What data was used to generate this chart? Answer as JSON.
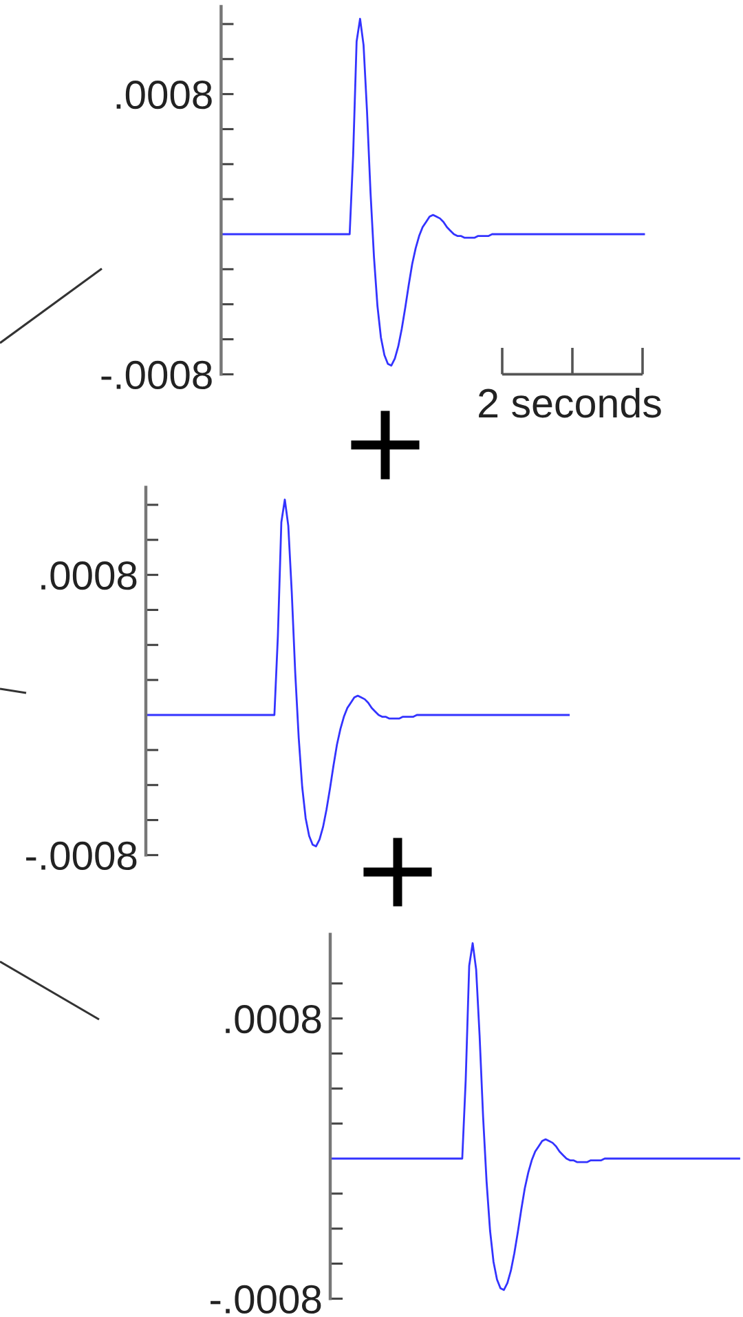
{
  "chart_data": [
    {
      "type": "line",
      "annotations": [
        "2 seconds",
        "+"
      ],
      "tick_labels": "y",
      "categories": [
        null,
        null,
        null,
        null,
        null,
        null,
        null,
        null,
        null,
        null,
        null,
        null,
        null,
        null,
        null,
        null,
        null,
        null,
        null,
        null,
        null,
        null,
        null,
        null,
        null,
        null,
        null,
        null,
        null,
        null,
        null,
        null,
        null,
        null,
        null,
        null,
        null,
        null,
        null,
        null,
        null,
        null,
        null,
        null,
        null,
        null,
        null,
        null,
        null,
        null,
        null,
        null,
        null,
        null,
        null,
        null,
        null,
        null,
        null,
        null,
        null,
        null,
        null,
        null,
        null,
        null,
        null,
        null,
        null,
        null,
        null,
        null,
        null,
        null,
        null,
        null,
        null,
        null,
        null,
        null,
        null,
        null,
        null,
        null,
        null,
        null,
        null,
        null,
        null,
        null,
        null,
        null,
        null,
        null,
        null,
        null,
        null,
        null,
        null,
        null,
        null,
        null,
        null,
        null,
        null,
        null,
        null,
        null,
        null,
        null,
        null,
        null,
        null,
        null,
        null,
        null,
        null,
        null,
        null,
        null,
        null,
        null,
        null
      ],
      "series": [
        {
          "color": "#3333ff",
          "values": [
            0,
            0,
            0,
            0,
            0,
            0,
            0,
            0,
            0,
            0,
            0,
            0,
            0,
            0,
            0,
            0,
            0,
            0,
            0,
            0,
            0,
            0,
            0,
            0,
            0,
            0,
            0,
            0,
            0,
            0,
            0,
            0,
            0,
            0,
            0,
            0,
            0,
            0,
            0.00045,
            0.0011,
            0.00123,
            0.00108,
            0.0007,
            0.00024,
            -0.00013,
            -0.00041,
            -0.00059,
            -0.00069,
            -0.00074,
            -0.00075,
            -0.00071,
            -0.00064,
            -0.00054,
            -0.00042,
            -0.00029,
            -0.00017,
            -8e-05,
            -1e-05,
            4e-05,
            7e-05,
            0.0001,
            0.00011,
            0.0001,
            9e-05,
            7e-05,
            4e-05,
            2e-05,
            0,
            -1e-05,
            -1e-05,
            -2e-05,
            -2e-05,
            -2e-05,
            -2e-05,
            -1e-05,
            -1e-05,
            -1e-05,
            -1e-05,
            0,
            0,
            0,
            0,
            0,
            0,
            0,
            0,
            0,
            0,
            0,
            0,
            0,
            0,
            0,
            0,
            0,
            0,
            0,
            0,
            0,
            0,
            0,
            0,
            0,
            0,
            0,
            0,
            0,
            0,
            0,
            0,
            0,
            0,
            0,
            0,
            0,
            0,
            0,
            0,
            0,
            0,
            0,
            0,
            0
          ]
        }
      ],
      "ylim": [
        -0.0008,
        0.0013
      ],
      "yticks": [
        {
          "value": -0.0008,
          "label": "-.0008"
        },
        {
          "value": -0.0006,
          "label": null
        },
        {
          "value": -0.0004,
          "label": null
        },
        {
          "value": -0.0002,
          "label": null
        },
        {
          "value": 0.0002,
          "label": null
        },
        {
          "value": 0.0004,
          "label": null
        },
        {
          "value": 0.0006,
          "label": null
        },
        {
          "value": 0.0008,
          "label": ".0008"
        },
        {
          "value": 0.001,
          "label": null
        },
        {
          "value": 0.0012,
          "label": null
        }
      ]
    },
    {
      "type": "line",
      "annotations": [
        "+"
      ],
      "tick_labels": "y",
      "categories": [
        null,
        null,
        null,
        null,
        null,
        null,
        null,
        null,
        null,
        null,
        null,
        null,
        null,
        null,
        null,
        null,
        null,
        null,
        null,
        null,
        null,
        null,
        null,
        null,
        null,
        null,
        null,
        null,
        null,
        null,
        null,
        null,
        null,
        null,
        null,
        null,
        null,
        null,
        null,
        null,
        null,
        null,
        null,
        null,
        null,
        null,
        null,
        null,
        null,
        null,
        null,
        null,
        null,
        null,
        null,
        null,
        null,
        null,
        null,
        null,
        null,
        null,
        null,
        null,
        null,
        null,
        null,
        null,
        null,
        null,
        null,
        null,
        null,
        null,
        null,
        null,
        null,
        null,
        null,
        null,
        null,
        null,
        null,
        null,
        null,
        null,
        null,
        null,
        null,
        null,
        null,
        null,
        null,
        null,
        null,
        null,
        null,
        null,
        null,
        null,
        null,
        null,
        null,
        null,
        null,
        null,
        null,
        null,
        null,
        null,
        null,
        null,
        null,
        null,
        null,
        null,
        null,
        null,
        null,
        null,
        null,
        null,
        null
      ],
      "series": [
        {
          "color": "#3333ff",
          "values": [
            0,
            0,
            0,
            0,
            0,
            0,
            0,
            0,
            0,
            0,
            0,
            0,
            0,
            0,
            0,
            0,
            0,
            0,
            0,
            0,
            0,
            0,
            0,
            0,
            0,
            0,
            0,
            0,
            0,
            0,
            0,
            0,
            0,
            0,
            0,
            0,
            0,
            0,
            0.00045,
            0.0011,
            0.00123,
            0.00108,
            0.0007,
            0.00024,
            -0.00013,
            -0.00041,
            -0.00059,
            -0.00069,
            -0.00074,
            -0.00075,
            -0.00071,
            -0.00064,
            -0.00054,
            -0.00042,
            -0.00029,
            -0.00017,
            -8e-05,
            -1e-05,
            4e-05,
            7e-05,
            0.0001,
            0.00011,
            0.0001,
            9e-05,
            7e-05,
            4e-05,
            2e-05,
            0,
            -1e-05,
            -1e-05,
            -2e-05,
            -2e-05,
            -2e-05,
            -2e-05,
            -1e-05,
            -1e-05,
            -1e-05,
            -1e-05,
            0,
            0,
            0,
            0,
            0,
            0,
            0,
            0,
            0,
            0,
            0,
            0,
            0,
            0,
            0,
            0,
            0,
            0,
            0,
            0,
            0,
            0,
            0,
            0,
            0,
            0,
            0,
            0,
            0,
            0,
            0,
            0,
            0,
            0,
            0,
            0,
            0,
            0,
            0,
            0,
            0,
            0,
            0,
            0,
            0
          ]
        }
      ],
      "ylim": [
        -0.0008,
        0.0013
      ],
      "yticks": [
        {
          "value": -0.0008,
          "label": "-.0008"
        },
        {
          "value": -0.0006,
          "label": null
        },
        {
          "value": -0.0004,
          "label": null
        },
        {
          "value": -0.0002,
          "label": null
        },
        {
          "value": 0.0002,
          "label": null
        },
        {
          "value": 0.0004,
          "label": null
        },
        {
          "value": 0.0006,
          "label": null
        },
        {
          "value": 0.0008,
          "label": ".0008"
        },
        {
          "value": 0.001,
          "label": null
        },
        {
          "value": 0.0012,
          "label": null
        }
      ]
    },
    {
      "type": "line",
      "tick_labels": "y",
      "categories": [
        null,
        null,
        null,
        null,
        null,
        null,
        null,
        null,
        null,
        null,
        null,
        null,
        null,
        null,
        null,
        null,
        null,
        null,
        null,
        null,
        null,
        null,
        null,
        null,
        null,
        null,
        null,
        null,
        null,
        null,
        null,
        null,
        null,
        null,
        null,
        null,
        null,
        null,
        null,
        null,
        null,
        null,
        null,
        null,
        null,
        null,
        null,
        null,
        null,
        null,
        null,
        null,
        null,
        null,
        null,
        null,
        null,
        null,
        null,
        null,
        null,
        null,
        null,
        null,
        null,
        null,
        null,
        null,
        null,
        null,
        null,
        null,
        null,
        null,
        null,
        null,
        null,
        null,
        null,
        null,
        null,
        null,
        null,
        null,
        null,
        null,
        null,
        null,
        null,
        null,
        null,
        null,
        null,
        null,
        null,
        null,
        null,
        null,
        null,
        null,
        null,
        null,
        null,
        null,
        null,
        null,
        null,
        null,
        null,
        null,
        null,
        null,
        null,
        null,
        null,
        null,
        null,
        null,
        null
      ],
      "series": [
        {
          "color": "#3333ff",
          "values": [
            0,
            0,
            0,
            0,
            0,
            0,
            0,
            0,
            0,
            0,
            0,
            0,
            0,
            0,
            0,
            0,
            0,
            0,
            0,
            0,
            0,
            0,
            0,
            0,
            0,
            0,
            0,
            0,
            0,
            0,
            0,
            0,
            0,
            0,
            0,
            0,
            0,
            0,
            0,
            0.00045,
            0.0011,
            0.00123,
            0.00108,
            0.0007,
            0.00024,
            -0.00013,
            -0.00041,
            -0.00059,
            -0.00069,
            -0.00074,
            -0.00075,
            -0.00071,
            -0.00064,
            -0.00054,
            -0.00042,
            -0.00029,
            -0.00017,
            -8e-05,
            -1e-05,
            4e-05,
            7e-05,
            0.0001,
            0.00011,
            0.0001,
            9e-05,
            7e-05,
            4e-05,
            2e-05,
            0,
            -1e-05,
            -1e-05,
            -2e-05,
            -2e-05,
            -2e-05,
            -2e-05,
            -1e-05,
            -1e-05,
            -1e-05,
            -1e-05,
            0,
            0,
            0,
            0,
            0,
            0,
            0,
            0,
            0,
            0,
            0,
            0,
            0,
            0,
            0,
            0,
            0,
            0,
            0,
            0,
            0,
            0,
            0,
            0,
            0,
            0,
            0,
            0,
            0,
            0,
            0,
            0,
            0,
            0,
            0,
            0,
            0,
            0,
            0,
            0
          ]
        }
      ],
      "ylim": [
        -0.0008,
        0.00128
      ],
      "yticks": [
        {
          "value": -0.0008,
          "label": "-.0008"
        },
        {
          "value": -0.0006,
          "label": null
        },
        {
          "value": -0.0004,
          "label": null
        },
        {
          "value": -0.0002,
          "label": null
        },
        {
          "value": 0.0002,
          "label": null
        },
        {
          "value": 0.0004,
          "label": null
        },
        {
          "value": 0.0006,
          "label": null
        },
        {
          "value": 0.0008,
          "label": ".0008"
        },
        {
          "value": 0.001,
          "label": null
        }
      ]
    }
  ]
}
